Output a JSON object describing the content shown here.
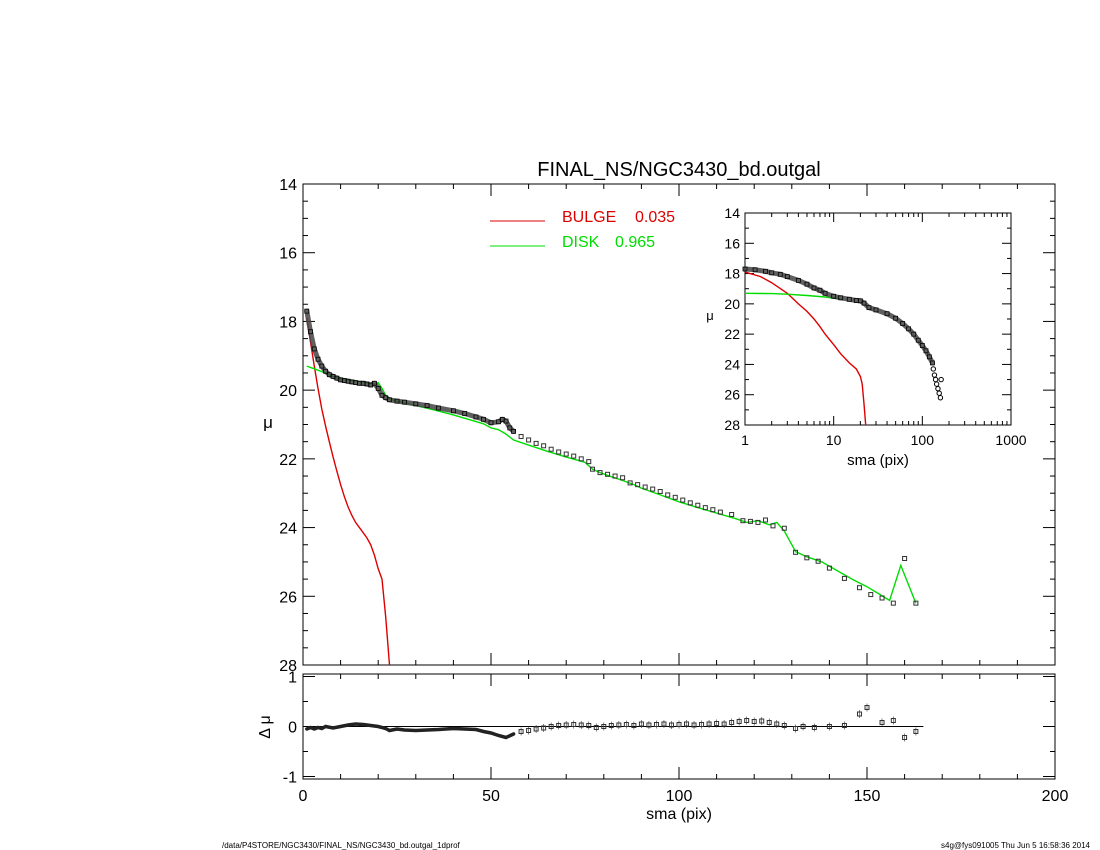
{
  "footer": {
    "left": "/data/P4STORE/NGC3430/FINAL_NS/NGC3430_bd.outgal_1dprof",
    "right": "s4g@fys091005  Thu Jun  5 16:58:36 2014"
  },
  "chart_data": [
    {
      "panel": "main",
      "type": "line",
      "title": "FINAL_NS/NGC3430_bd.outgal",
      "xlabel": "",
      "ylabel": "μ",
      "xlim": [
        0,
        200
      ],
      "ylim": [
        28,
        14
      ],
      "y_inverted": true,
      "yticks": [
        14,
        16,
        18,
        20,
        22,
        24,
        26,
        28
      ],
      "legend_placement": "top-center",
      "legend": [
        {
          "label": "BULGE",
          "value": "0.035",
          "color": "#dd0000"
        },
        {
          "label": "DISK",
          "value": "0.965",
          "color": "#00dd00"
        }
      ],
      "series": [
        {
          "name": "BULGE",
          "color": "#dd0000",
          "x": [
            1,
            2,
            3,
            4,
            5,
            6,
            7,
            8,
            9,
            10,
            11,
            12,
            13,
            14,
            15,
            16,
            17,
            18,
            19,
            20,
            21,
            22,
            23
          ],
          "y": [
            17.9,
            18.6,
            19.3,
            19.95,
            20.55,
            21.05,
            21.5,
            21.95,
            22.35,
            22.75,
            23.1,
            23.4,
            23.65,
            23.85,
            24.0,
            24.15,
            24.3,
            24.5,
            24.8,
            25.2,
            25.5,
            26.6,
            28.0
          ]
        },
        {
          "name": "DISK",
          "color": "#00dd00",
          "x": [
            1,
            3,
            5,
            8,
            10,
            13,
            16,
            19,
            20,
            21,
            22,
            23,
            25,
            30,
            35,
            40,
            45,
            48,
            50,
            52,
            54,
            56,
            60,
            65,
            70,
            75,
            77,
            79,
            82,
            85,
            88,
            90,
            95,
            100,
            105,
            110,
            115,
            118,
            121,
            124,
            126,
            128,
            131,
            134,
            138,
            142,
            146,
            150,
            153,
            156,
            159,
            163
          ],
          "y": [
            19.3,
            19.38,
            19.46,
            19.6,
            19.68,
            19.72,
            19.77,
            19.83,
            19.78,
            19.95,
            20.15,
            20.25,
            20.32,
            20.45,
            20.58,
            20.72,
            20.88,
            20.98,
            21.1,
            21.15,
            21.28,
            21.45,
            21.6,
            21.78,
            21.95,
            22.1,
            22.3,
            22.4,
            22.52,
            22.63,
            22.75,
            22.85,
            23.05,
            23.25,
            23.42,
            23.58,
            23.74,
            23.85,
            23.8,
            23.92,
            23.85,
            24.1,
            24.7,
            24.85,
            25.0,
            25.25,
            25.5,
            25.72,
            25.92,
            26.12,
            25.1,
            26.2
          ]
        },
        {
          "name": "",
          "color": "#000000",
          "style": "thick-symbols",
          "x": [
            1,
            2,
            3,
            4,
            5,
            6,
            7,
            8,
            9,
            10,
            11,
            12,
            13,
            14,
            15,
            16,
            17,
            18,
            19,
            20,
            21,
            22,
            23,
            25,
            27,
            30,
            33,
            36,
            40,
            43,
            46,
            48,
            50,
            52,
            53,
            54,
            55,
            56
          ],
          "y": [
            17.7,
            18.3,
            18.8,
            19.1,
            19.3,
            19.45,
            19.55,
            19.6,
            19.65,
            19.7,
            19.72,
            19.74,
            19.76,
            19.78,
            19.8,
            19.8,
            19.82,
            19.85,
            19.8,
            19.95,
            20.15,
            20.22,
            20.28,
            20.32,
            20.35,
            20.4,
            20.45,
            20.52,
            20.6,
            20.68,
            20.78,
            20.85,
            20.95,
            20.92,
            20.85,
            20.9,
            21.1,
            21.2
          ]
        },
        {
          "name": "",
          "color": "#000000",
          "style": "open-squares",
          "x": [
            58,
            60,
            62,
            64,
            66,
            68,
            70,
            72,
            74,
            76,
            77,
            79,
            81,
            83,
            85,
            87,
            89,
            91,
            93,
            95,
            97,
            99,
            101,
            103,
            105,
            107,
            109,
            111,
            114,
            117,
            119,
            121,
            123,
            125,
            128,
            131,
            134,
            137,
            140,
            144,
            148,
            151,
            154,
            157,
            160,
            163
          ],
          "y": [
            21.35,
            21.45,
            21.55,
            21.62,
            21.72,
            21.8,
            21.86,
            21.92,
            22.0,
            22.08,
            22.3,
            22.4,
            22.45,
            22.5,
            22.55,
            22.7,
            22.75,
            22.82,
            22.88,
            22.95,
            23.05,
            23.12,
            23.2,
            23.28,
            23.35,
            23.42,
            23.48,
            23.55,
            23.62,
            23.8,
            23.82,
            23.85,
            23.78,
            23.95,
            24.02,
            24.72,
            24.88,
            24.98,
            25.18,
            25.48,
            25.75,
            25.95,
            26.05,
            26.2,
            24.9,
            26.2
          ]
        }
      ]
    },
    {
      "panel": "residual",
      "type": "scatter",
      "title": "",
      "xlabel": "sma (pix)",
      "ylabel": "Δ μ",
      "xlim": [
        0,
        200
      ],
      "ylim": [
        -1,
        1
      ],
      "xticks": [
        0,
        50,
        100,
        150,
        200
      ],
      "yticks": [
        -1,
        0,
        1
      ],
      "zero_line_x": [
        0,
        165
      ],
      "series": [
        {
          "name": "",
          "color": "#000000",
          "style": "thick-symbols",
          "x": [
            1,
            2,
            3,
            4,
            5,
            6,
            8,
            10,
            12,
            14,
            16,
            18,
            20,
            22,
            23,
            25,
            27,
            30,
            33,
            36,
            40,
            43,
            46,
            48,
            50,
            52,
            54,
            56
          ],
          "y": [
            -0.05,
            -0.02,
            -0.05,
            -0.02,
            -0.04,
            0.0,
            -0.03,
            0.0,
            0.03,
            0.05,
            0.04,
            0.02,
            0.0,
            -0.04,
            -0.08,
            -0.05,
            -0.07,
            -0.08,
            -0.07,
            -0.06,
            -0.04,
            -0.05,
            -0.06,
            -0.1,
            -0.13,
            -0.18,
            -0.22,
            -0.15
          ]
        },
        {
          "name": "",
          "color": "#000000",
          "style": "open-squares",
          "x": [
            58,
            60,
            62,
            64,
            66,
            68,
            70,
            72,
            74,
            76,
            78,
            80,
            82,
            84,
            86,
            88,
            90,
            92,
            94,
            96,
            98,
            100,
            102,
            104,
            106,
            108,
            110,
            112,
            114,
            116,
            118,
            120,
            122,
            124,
            126,
            128,
            131,
            133,
            136,
            140,
            144,
            148,
            150,
            154,
            157,
            160,
            163
          ],
          "y": [
            -0.1,
            -0.08,
            -0.05,
            -0.03,
            0.0,
            0.02,
            0.03,
            0.04,
            0.03,
            0.02,
            -0.02,
            0.0,
            0.02,
            0.03,
            0.04,
            0.02,
            0.05,
            0.03,
            0.04,
            0.05,
            0.03,
            0.04,
            0.05,
            0.03,
            0.04,
            0.05,
            0.06,
            0.05,
            0.08,
            0.1,
            0.12,
            0.1,
            0.11,
            0.08,
            0.05,
            0.02,
            -0.04,
            0.0,
            -0.02,
            0.0,
            0.02,
            0.25,
            0.38,
            0.08,
            0.12,
            -0.22,
            -0.1
          ]
        }
      ]
    },
    {
      "panel": "inset",
      "type": "line",
      "title": "",
      "xlabel": "sma (pix)",
      "ylabel": "μ",
      "xscale": "log",
      "xlim": [
        1,
        1000
      ],
      "ylim": [
        28,
        14
      ],
      "y_inverted": true,
      "xticks": [
        "1",
        "10",
        "100",
        "1000"
      ],
      "yticks": [
        14,
        16,
        18,
        20,
        22,
        24,
        26,
        28
      ],
      "series": [
        {
          "name": "BULGE",
          "color": "#dd0000",
          "x": [
            1,
            1.5,
            2,
            3,
            4,
            5,
            6,
            7,
            8,
            10,
            12,
            15,
            18,
            20,
            21,
            22,
            23
          ],
          "y": [
            17.9,
            18.2,
            18.6,
            19.3,
            20.0,
            20.5,
            21.0,
            21.5,
            22.0,
            22.7,
            23.3,
            23.9,
            24.3,
            24.8,
            25.3,
            26.6,
            28.0
          ]
        },
        {
          "name": "DISK",
          "color": "#00dd00",
          "x": [
            1,
            2,
            3,
            5,
            8,
            12
          ],
          "y": [
            19.3,
            19.32,
            19.36,
            19.45,
            19.55,
            19.68
          ]
        },
        {
          "name": "",
          "color": "#000000",
          "style": "thick-symbols",
          "x": [
            1,
            1.3,
            1.7,
            2,
            2.5,
            3,
            4,
            5,
            6,
            7,
            8,
            10,
            12,
            15,
            18,
            20,
            22,
            25,
            30,
            40,
            50,
            60,
            70,
            80,
            90,
            100,
            110,
            120,
            130
          ],
          "y": [
            17.7,
            17.75,
            17.85,
            17.95,
            18.05,
            18.2,
            18.45,
            18.7,
            18.95,
            19.1,
            19.3,
            19.5,
            19.6,
            19.7,
            19.78,
            19.8,
            19.95,
            20.25,
            20.4,
            20.65,
            20.95,
            21.3,
            21.65,
            22.0,
            22.4,
            22.75,
            23.1,
            23.5,
            23.9
          ]
        },
        {
          "name": "",
          "color": "#000000",
          "style": "open-circles",
          "x": [
            133,
            137,
            141,
            145,
            150,
            155,
            160,
            163
          ],
          "y": [
            24.3,
            24.7,
            25.0,
            25.3,
            25.6,
            25.9,
            26.2,
            25.0
          ]
        }
      ]
    }
  ]
}
